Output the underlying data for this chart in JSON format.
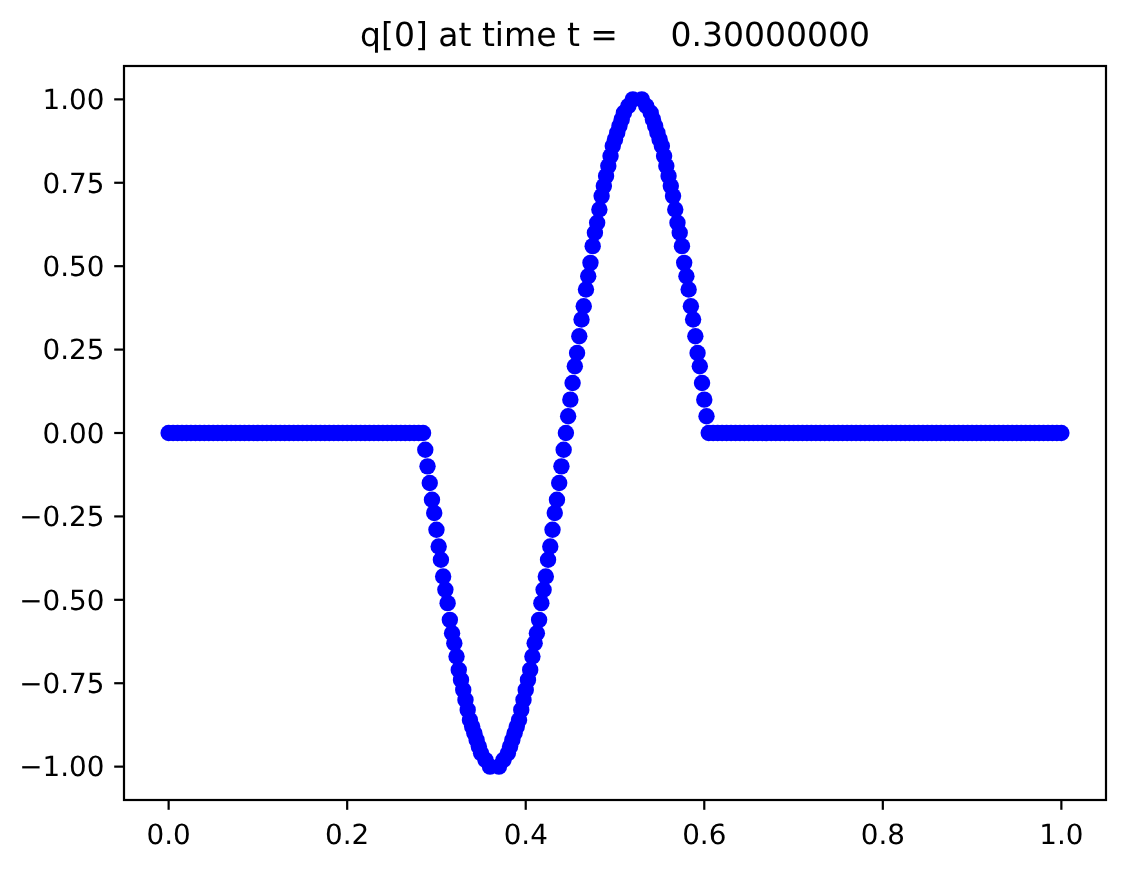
{
  "chart_data": {
    "type": "scatter",
    "title": "q[0] at time t =     0.30000000",
    "x": [
      0,
      0.005,
      0.01,
      0.015,
      0.02,
      0.025,
      0.03,
      0.035,
      0.04,
      0.045,
      0.05,
      0.055,
      0.06,
      0.065,
      0.07,
      0.075,
      0.08,
      0.085,
      0.09,
      0.095,
      0.1,
      0.105,
      0.11,
      0.115,
      0.12,
      0.125,
      0.13,
      0.135,
      0.14,
      0.145,
      0.15,
      0.155,
      0.16,
      0.165,
      0.17,
      0.175,
      0.18,
      0.185,
      0.19,
      0.195,
      0.2,
      0.205,
      0.21,
      0.215,
      0.22,
      0.225,
      0.23,
      0.235,
      0.24,
      0.245,
      0.25,
      0.255,
      0.26,
      0.265,
      0.27,
      0.275,
      0.28,
      0.285,
      0.2875,
      0.29,
      0.2925,
      0.295,
      0.2975,
      0.3,
      0.3025,
      0.305,
      0.3075,
      0.31,
      0.3125,
      0.315,
      0.3175,
      0.32,
      0.3225,
      0.325,
      0.3275,
      0.33,
      0.3325,
      0.335,
      0.3375,
      0.34,
      0.3425,
      0.345,
      0.3475,
      0.35,
      0.355,
      0.36,
      0.37,
      0.375,
      0.38,
      0.3825,
      0.385,
      0.3875,
      0.39,
      0.3925,
      0.395,
      0.3975,
      0.4,
      0.4025,
      0.405,
      0.4075,
      0.41,
      0.4125,
      0.415,
      0.4175,
      0.42,
      0.4225,
      0.425,
      0.4275,
      0.43,
      0.4325,
      0.435,
      0.4375,
      0.44,
      0.4425,
      0.445,
      0.4475,
      0.45,
      0.4525,
      0.455,
      0.4575,
      0.46,
      0.4625,
      0.465,
      0.4675,
      0.47,
      0.4725,
      0.475,
      0.4775,
      0.48,
      0.4825,
      0.485,
      0.4875,
      0.49,
      0.4925,
      0.495,
      0.4975,
      0.5,
      0.5025,
      0.505,
      0.5075,
      0.51,
      0.515,
      0.52,
      0.53,
      0.535,
      0.54,
      0.5425,
      0.545,
      0.5475,
      0.55,
      0.5525,
      0.555,
      0.5575,
      0.56,
      0.5625,
      0.565,
      0.5675,
      0.57,
      0.5725,
      0.575,
      0.5775,
      0.58,
      0.5825,
      0.585,
      0.5875,
      0.59,
      0.5925,
      0.595,
      0.5975,
      0.6,
      0.6025,
      0.605,
      0.61,
      0.615,
      0.62,
      0.625,
      0.63,
      0.635,
      0.64,
      0.645,
      0.65,
      0.655,
      0.66,
      0.665,
      0.67,
      0.675,
      0.68,
      0.685,
      0.69,
      0.695,
      0.7,
      0.705,
      0.71,
      0.715,
      0.72,
      0.725,
      0.73,
      0.735,
      0.74,
      0.745,
      0.75,
      0.755,
      0.76,
      0.765,
      0.77,
      0.775,
      0.78,
      0.785,
      0.79,
      0.795,
      0.8,
      0.805,
      0.81,
      0.815,
      0.82,
      0.825,
      0.83,
      0.835,
      0.84,
      0.845,
      0.85,
      0.855,
      0.86,
      0.865,
      0.87,
      0.875,
      0.88,
      0.885,
      0.89,
      0.895,
      0.9,
      0.905,
      0.91,
      0.915,
      0.92,
      0.925,
      0.93,
      0.935,
      0.94,
      0.945,
      0.95,
      0.955,
      0.96,
      0.965,
      0.97,
      0.975,
      0.98,
      0.985,
      0.99,
      0.995,
      1
    ],
    "values": [
      0,
      0,
      0,
      0,
      0,
      0,
      0,
      0,
      0,
      0,
      0,
      0,
      0,
      0,
      0,
      0,
      0,
      0,
      0,
      0,
      0,
      0,
      0,
      0,
      0,
      0,
      0,
      0,
      0,
      0,
      0,
      0,
      0,
      0,
      0,
      0,
      0,
      0,
      0,
      0,
      0,
      0,
      0,
      0,
      0,
      0,
      0,
      0,
      0,
      0,
      0,
      0,
      0,
      0,
      0,
      0,
      0,
      0,
      -0.05,
      -0.1,
      -0.15,
      -0.2,
      -0.24,
      -0.29,
      -0.34,
      -0.38,
      -0.43,
      -0.47,
      -0.51,
      -0.56,
      -0.6,
      -0.63,
      -0.67,
      -0.71,
      -0.74,
      -0.77,
      -0.8,
      -0.83,
      -0.86,
      -0.88,
      -0.9,
      -0.92,
      -0.94,
      -0.96,
      -0.98,
      -1.0,
      -1.0,
      -0.98,
      -0.96,
      -0.94,
      -0.92,
      -0.9,
      -0.88,
      -0.86,
      -0.83,
      -0.8,
      -0.77,
      -0.74,
      -0.71,
      -0.67,
      -0.63,
      -0.6,
      -0.56,
      -0.51,
      -0.47,
      -0.43,
      -0.38,
      -0.34,
      -0.29,
      -0.24,
      -0.2,
      -0.15,
      -0.1,
      -0.05,
      0,
      0.05,
      0.1,
      0.15,
      0.2,
      0.24,
      0.29,
      0.34,
      0.38,
      0.43,
      0.47,
      0.51,
      0.56,
      0.6,
      0.63,
      0.67,
      0.71,
      0.74,
      0.77,
      0.8,
      0.83,
      0.86,
      0.88,
      0.9,
      0.92,
      0.94,
      0.96,
      0.98,
      1.0,
      1.0,
      0.98,
      0.96,
      0.94,
      0.92,
      0.9,
      0.88,
      0.86,
      0.83,
      0.8,
      0.77,
      0.74,
      0.71,
      0.67,
      0.63,
      0.6,
      0.56,
      0.51,
      0.47,
      0.43,
      0.38,
      0.34,
      0.29,
      0.24,
      0.2,
      0.15,
      0.1,
      0.05,
      0,
      0,
      0,
      0,
      0,
      0,
      0,
      0,
      0,
      0,
      0,
      0,
      0,
      0,
      0,
      0,
      0,
      0,
      0,
      0,
      0,
      0,
      0,
      0,
      0,
      0,
      0,
      0,
      0,
      0,
      0,
      0,
      0,
      0,
      0,
      0,
      0,
      0,
      0,
      0,
      0,
      0,
      0,
      0,
      0,
      0,
      0,
      0,
      0,
      0,
      0,
      0,
      0,
      0,
      0,
      0,
      0,
      0,
      0,
      0,
      0,
      0,
      0,
      0,
      0,
      0,
      0,
      0,
      0,
      0,
      0,
      0,
      0,
      0,
      0,
      0,
      0,
      0,
      0,
      0
    ],
    "color": "#0000ff",
    "marker": "circle",
    "xlim": [
      -0.05,
      1.05
    ],
    "xticks": [
      {
        "value": 0,
        "label": "0.0"
      },
      {
        "value": 0.2,
        "label": "0.2"
      },
      {
        "value": 0.4,
        "label": "0.4"
      },
      {
        "value": 0.6,
        "label": "0.6"
      },
      {
        "value": 0.8,
        "label": "0.8"
      },
      {
        "value": 1,
        "label": "1.0"
      }
    ],
    "ylim": [
      -1.1,
      1.1
    ],
    "yticks": [
      {
        "value": -1,
        "label": "−1.00"
      },
      {
        "value": -0.75,
        "label": "−0.75"
      },
      {
        "value": -0.5,
        "label": "−0.50"
      },
      {
        "value": -0.25,
        "label": "−0.25"
      },
      {
        "value": 0,
        "label": "0.00"
      },
      {
        "value": 0.25,
        "label": "0.25"
      },
      {
        "value": 0.5,
        "label": "0.50"
      },
      {
        "value": 0.75,
        "label": "0.75"
      },
      {
        "value": 1,
        "label": "1.00"
      }
    ]
  }
}
